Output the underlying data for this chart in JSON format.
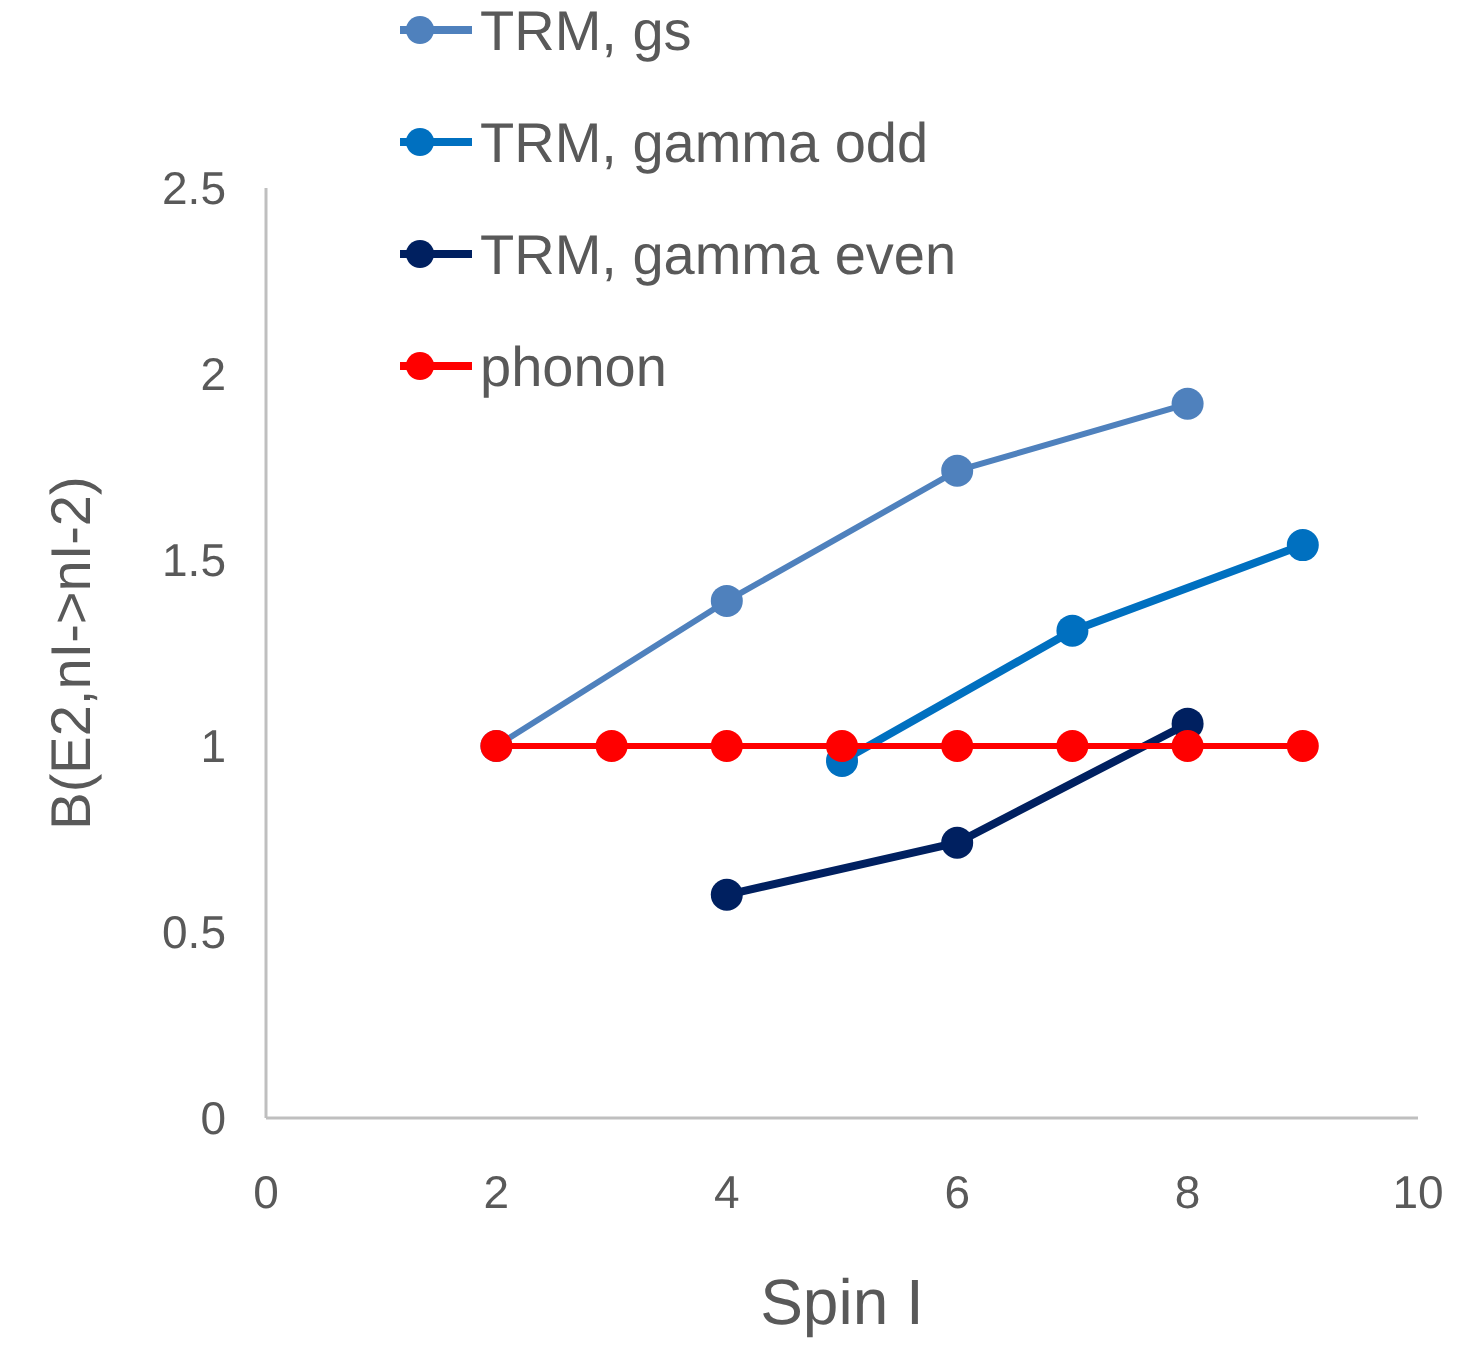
{
  "chart_data": {
    "type": "line",
    "xlabel": "Spin I",
    "ylabel": "B(E2,nI->nI-2)",
    "xlim": [
      0,
      10
    ],
    "xticks": [
      0,
      2,
      4,
      6,
      8,
      10
    ],
    "ylim": [
      0,
      2.5
    ],
    "yticks": [
      0,
      0.5,
      1,
      1.5,
      2,
      2.5
    ],
    "grid": false,
    "legend": "top left",
    "marker": "circle",
    "series": [
      {
        "name": "TRM, gs",
        "color": "#4f81bd",
        "x": [
          2,
          4,
          6,
          8
        ],
        "values": [
          1,
          1.39,
          1.74,
          1.92
        ]
      },
      {
        "name": "TRM, gamma odd",
        "color": "#0070c0",
        "x": [
          5,
          7,
          9
        ],
        "values": [
          0.96,
          1.31,
          1.54
        ]
      },
      {
        "name": "TRM, gamma even",
        "color": "#002060",
        "x": [
          4,
          6,
          8
        ],
        "values": [
          0.6,
          0.74,
          1.06
        ]
      },
      {
        "name": "phonon",
        "color": "#ff0000",
        "x": [
          2,
          3,
          4,
          5,
          6,
          7,
          8,
          9
        ],
        "values": [
          1,
          1,
          1,
          1,
          1,
          1,
          1,
          1
        ]
      }
    ]
  }
}
